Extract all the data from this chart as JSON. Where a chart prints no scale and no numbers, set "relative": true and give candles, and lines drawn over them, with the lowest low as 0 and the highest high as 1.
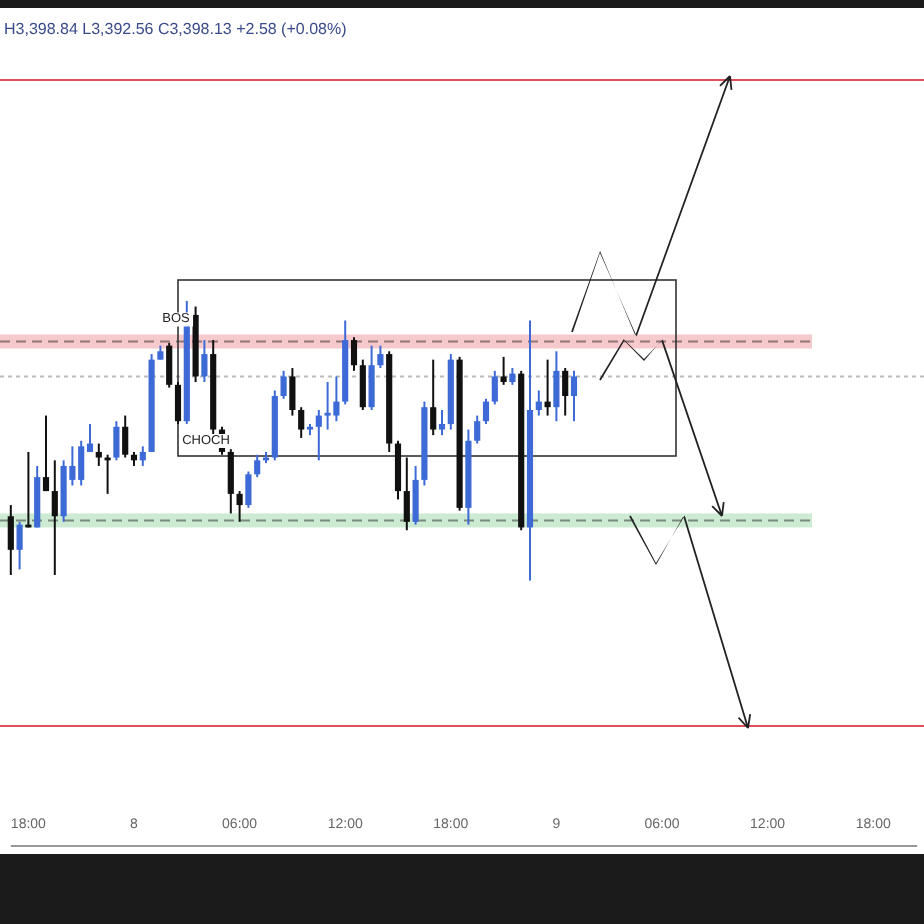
{
  "chart_data": {
    "type": "candlestick",
    "title": "H3,398.84 L3,392.56 C3,398.13 +2.58 (+0.08%)",
    "relative": true,
    "categories": [
      null,
      null,
      "18:00",
      null,
      null,
      null,
      null,
      null,
      null,
      null,
      null,
      null,
      null,
      null,
      "8",
      null,
      null,
      null,
      null,
      null,
      null,
      null,
      null,
      null,
      null,
      null,
      "06:00",
      null,
      null,
      null,
      null,
      null,
      null,
      null,
      null,
      null,
      null,
      null,
      "12:00",
      null,
      null,
      null,
      null,
      null,
      null,
      null,
      null,
      null,
      null,
      null,
      "18:00",
      null,
      null,
      null,
      null,
      null,
      null,
      null,
      null,
      null,
      null,
      null,
      "9",
      null,
      null,
      null,
      null,
      null,
      null,
      null,
      null,
      null,
      null,
      null,
      "06:00",
      null,
      null,
      null,
      null,
      null,
      null,
      null,
      null,
      null,
      null,
      null,
      "12:00",
      null,
      null,
      null,
      null,
      null,
      null,
      null,
      null,
      null,
      null,
      null,
      "18:00",
      null,
      null,
      null,
      null,
      null
    ],
    "ohlc": [
      [
        0.23,
        0.27,
        0.02,
        0.11
      ],
      [
        0.11,
        0.21,
        0.04,
        0.2
      ],
      [
        0.2,
        0.46,
        0.19,
        0.19
      ],
      [
        0.19,
        0.41,
        0.19,
        0.37
      ],
      [
        0.37,
        0.59,
        0.32,
        0.32
      ],
      [
        0.32,
        0.43,
        0.02,
        0.23
      ],
      [
        0.23,
        0.43,
        0.21,
        0.41
      ],
      [
        0.36,
        0.48,
        0.34,
        0.41
      ],
      [
        0.36,
        0.5,
        0.34,
        0.48
      ],
      [
        0.46,
        0.56,
        0.46,
        0.49
      ],
      [
        0.46,
        0.49,
        0.41,
        0.44
      ],
      [
        0.44,
        0.45,
        0.31,
        0.43
      ],
      [
        0.44,
        0.57,
        0.43,
        0.55
      ],
      [
        0.55,
        0.59,
        0.44,
        0.45
      ],
      [
        0.45,
        0.46,
        0.41,
        0.43
      ],
      [
        0.43,
        0.48,
        0.41,
        0.46
      ],
      [
        0.46,
        0.81,
        0.46,
        0.79
      ],
      [
        0.79,
        0.84,
        0.79,
        0.82
      ],
      [
        0.84,
        0.85,
        0.69,
        0.7
      ],
      [
        0.7,
        0.71,
        0.56,
        0.57
      ],
      [
        0.57,
        1,
        0.56,
        0.95
      ],
      [
        0.95,
        0.98,
        0.71,
        0.73
      ],
      [
        0.73,
        0.86,
        0.71,
        0.81
      ],
      [
        0.81,
        0.86,
        0.52,
        0.54
      ],
      [
        0.54,
        0.55,
        0.45,
        0.46
      ],
      [
        0.46,
        0.47,
        0.24,
        0.31
      ],
      [
        0.31,
        0.32,
        0.21,
        0.27
      ],
      [
        0.27,
        0.39,
        0.26,
        0.38
      ],
      [
        0.38,
        0.45,
        0.37,
        0.43
      ],
      [
        0.43,
        0.46,
        0.42,
        0.44
      ],
      [
        0.44,
        0.68,
        0.43,
        0.66
      ],
      [
        0.66,
        0.75,
        0.65,
        0.73
      ],
      [
        0.73,
        0.76,
        0.59,
        0.61
      ],
      [
        0.61,
        0.62,
        0.51,
        0.54
      ],
      [
        0.54,
        0.56,
        0.52,
        0.55
      ],
      [
        0.55,
        0.61,
        0.43,
        0.59
      ],
      [
        0.59,
        0.71,
        0.54,
        0.6
      ],
      [
        0.59,
        0.73,
        0.57,
        0.64
      ],
      [
        0.64,
        0.93,
        0.63,
        0.86
      ],
      [
        0.86,
        0.87,
        0.75,
        0.77
      ],
      [
        0.77,
        0.79,
        0.61,
        0.62
      ],
      [
        0.62,
        0.84,
        0.61,
        0.77
      ],
      [
        0.77,
        0.84,
        0.76,
        0.81
      ],
      [
        0.81,
        0.82,
        0.46,
        0.49
      ],
      [
        0.49,
        0.5,
        0.29,
        0.32
      ],
      [
        0.32,
        0.44,
        0.18,
        0.21
      ],
      [
        0.21,
        0.41,
        0.2,
        0.36
      ],
      [
        0.36,
        0.64,
        0.34,
        0.62
      ],
      [
        0.62,
        0.79,
        0.52,
        0.54
      ],
      [
        0.54,
        0.61,
        0.52,
        0.56
      ],
      [
        0.56,
        0.81,
        0.54,
        0.79
      ],
      [
        0.79,
        0.8,
        0.25,
        0.26
      ],
      [
        0.26,
        0.54,
        0.2,
        0.5
      ],
      [
        0.5,
        0.59,
        0.49,
        0.57
      ],
      [
        0.57,
        0.65,
        0.56,
        0.64
      ],
      [
        0.64,
        0.75,
        0.63,
        0.73
      ],
      [
        0.73,
        0.8,
        0.7,
        0.71
      ],
      [
        0.71,
        0.76,
        0.7,
        0.74
      ],
      [
        0.74,
        0.75,
        0.18,
        0.19
      ],
      [
        0.19,
        0.93,
        0,
        0.61
      ],
      [
        0.61,
        0.68,
        0.59,
        0.64
      ],
      [
        0.64,
        0.79,
        0.59,
        0.62
      ],
      [
        0.62,
        0.82,
        0.57,
        0.75
      ],
      [
        0.75,
        0.76,
        0.59,
        0.66
      ],
      [
        0.66,
        0.75,
        0.57,
        0.73
      ],
      null,
      null,
      null,
      null,
      null,
      null,
      null,
      null,
      null,
      null,
      null,
      null,
      null,
      null,
      null,
      null,
      null,
      null,
      null,
      null,
      null,
      null,
      null,
      null,
      null,
      null,
      null,
      null,
      null,
      null,
      null,
      null,
      null,
      null,
      null,
      null,
      null,
      null,
      null
    ],
    "colors": [
      "#111111",
      "#3d6ad6",
      "#111111",
      "#3d6ad6",
      "#111111",
      "#111111",
      "#3d6ad6",
      "#3d6ad6",
      "#3d6ad6",
      "#3d6ad6",
      "#111111",
      "#111111",
      "#3d6ad6",
      "#111111",
      "#111111",
      "#3d6ad6",
      "#3d6ad6",
      "#3d6ad6",
      "#111111",
      "#111111",
      "#3d6ad6",
      "#111111",
      "#3d6ad6",
      "#111111",
      "#111111",
      "#111111",
      "#111111",
      "#3d6ad6",
      "#3d6ad6",
      "#3d6ad6",
      "#3d6ad6",
      "#3d6ad6",
      "#111111",
      "#111111",
      "#3d6ad6",
      "#3d6ad6",
      "#3d6ad6",
      "#3d6ad6",
      "#3d6ad6",
      "#111111",
      "#111111",
      "#3d6ad6",
      "#3d6ad6",
      "#111111",
      "#111111",
      "#111111",
      "#3d6ad6",
      "#3d6ad6",
      "#111111",
      "#3d6ad6",
      "#3d6ad6",
      "#111111",
      "#3d6ad6",
      "#3d6ad6",
      "#3d6ad6",
      "#3d6ad6",
      "#111111",
      "#3d6ad6",
      "#111111",
      "#3d6ad6",
      "#3d6ad6",
      "#111111",
      "#3d6ad6",
      "#111111",
      "#3d6ad6",
      null,
      null,
      null,
      null,
      null,
      null,
      null,
      null,
      null,
      null,
      null,
      null,
      null,
      null,
      null,
      null,
      null,
      null,
      null,
      null,
      null,
      null,
      null,
      null,
      null,
      null,
      null,
      null,
      null,
      null,
      null,
      null,
      null,
      null,
      null,
      null,
      null,
      null,
      null
    ],
    "ref_lines": [
      {
        "axis": "y",
        "value": 1.79,
        "color": "#e0505a",
        "line_style": "solid"
      },
      {
        "axis": "y",
        "value": -0.52,
        "color": "#e0505a",
        "line_style": "solid"
      },
      {
        "axis": "y",
        "value": 0.73,
        "color": "#bbbbbb",
        "line_style": "dotted"
      },
      {
        "axis": "y",
        "value": 0.855,
        "color": "#907677",
        "line_style": "dashed"
      },
      {
        "axis": "y",
        "value": 0.215,
        "color": "#788a7b",
        "line_style": "dashed"
      }
    ],
    "bands": [
      {
        "axis": "y",
        "from": 0.83,
        "to": 0.88,
        "color": "#f6c9cc"
      },
      {
        "axis": "y",
        "from": 0.19,
        "to": 0.24,
        "color": "#cdebd2"
      }
    ],
    "annotations": [
      {
        "text": "BOS",
        "x": "8",
        "y": 0.88
      },
      "CHOCH"
    ]
  }
}
